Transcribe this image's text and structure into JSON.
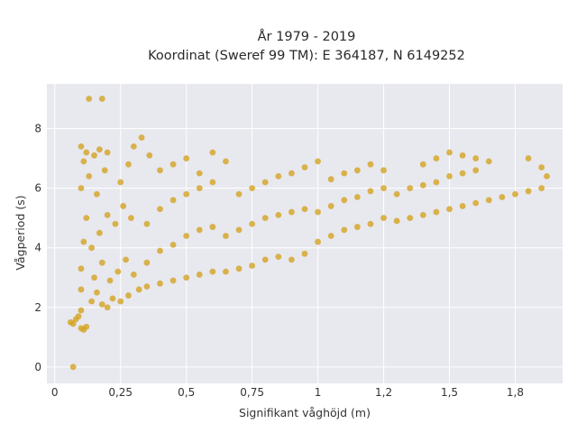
{
  "chart_data": {
    "type": "scatter",
    "title_lines": [
      "År 1979 - 2019",
      "Koordinat (Sweref 99 TM): E 364187, N 6149252"
    ],
    "xlabel": "Signifikant våghöjd (m)",
    "ylabel": "Vågperiod (s)",
    "xlim": [
      -0.03,
      1.93
    ],
    "ylim": [
      -0.55,
      9.5
    ],
    "x_ticks": [
      {
        "value": 0,
        "label": "0"
      },
      {
        "value": 0.25,
        "label": "0,25"
      },
      {
        "value": 0.5,
        "label": "0,5"
      },
      {
        "value": 0.75,
        "label": "0,75"
      },
      {
        "value": 1.0,
        "label": "1"
      },
      {
        "value": 1.25,
        "label": "1,2"
      },
      {
        "value": 1.5,
        "label": "1,5"
      },
      {
        "value": 1.75,
        "label": "1,8"
      }
    ],
    "y_ticks": [
      {
        "value": 0,
        "label": "0"
      },
      {
        "value": 2,
        "label": "2"
      },
      {
        "value": 4,
        "label": "4"
      },
      {
        "value": 6,
        "label": "6"
      },
      {
        "value": 8,
        "label": "8"
      }
    ],
    "grid": true,
    "background": "#e8e8ef",
    "marker_color": "#d4a21c",
    "points": [
      [
        0.07,
        0.0
      ],
      [
        0.13,
        9.0
      ],
      [
        0.18,
        9.0
      ],
      [
        0.06,
        1.5
      ],
      [
        0.07,
        1.45
      ],
      [
        0.08,
        1.6
      ],
      [
        0.09,
        1.7
      ],
      [
        0.1,
        1.3
      ],
      [
        0.11,
        1.25
      ],
      [
        0.12,
        1.35
      ],
      [
        0.1,
        1.9
      ],
      [
        0.1,
        2.6
      ],
      [
        0.1,
        3.3
      ],
      [
        0.11,
        4.2
      ],
      [
        0.12,
        5.0
      ],
      [
        0.1,
        6.0
      ],
      [
        0.11,
        6.9
      ],
      [
        0.1,
        7.4
      ],
      [
        0.12,
        7.2
      ],
      [
        0.15,
        7.1
      ],
      [
        0.17,
        7.3
      ],
      [
        0.2,
        7.2
      ],
      [
        0.13,
        6.4
      ],
      [
        0.16,
        5.8
      ],
      [
        0.19,
        6.6
      ],
      [
        0.14,
        2.2
      ],
      [
        0.16,
        2.5
      ],
      [
        0.18,
        2.1
      ],
      [
        0.2,
        2.0
      ],
      [
        0.22,
        2.3
      ],
      [
        0.25,
        2.2
      ],
      [
        0.28,
        2.4
      ],
      [
        0.15,
        3.0
      ],
      [
        0.18,
        3.5
      ],
      [
        0.21,
        2.9
      ],
      [
        0.24,
        3.2
      ],
      [
        0.27,
        3.6
      ],
      [
        0.3,
        3.1
      ],
      [
        0.14,
        4.0
      ],
      [
        0.17,
        4.5
      ],
      [
        0.2,
        5.1
      ],
      [
        0.23,
        4.8
      ],
      [
        0.26,
        5.4
      ],
      [
        0.29,
        5.0
      ],
      [
        0.25,
        6.2
      ],
      [
        0.28,
        6.8
      ],
      [
        0.3,
        7.4
      ],
      [
        0.33,
        7.7
      ],
      [
        0.36,
        7.1
      ],
      [
        0.4,
        6.6
      ],
      [
        0.32,
        2.6
      ],
      [
        0.35,
        2.7
      ],
      [
        0.4,
        2.8
      ],
      [
        0.45,
        2.9
      ],
      [
        0.5,
        3.0
      ],
      [
        0.55,
        3.1
      ],
      [
        0.6,
        3.2
      ],
      [
        0.35,
        3.5
      ],
      [
        0.4,
        3.9
      ],
      [
        0.45,
        4.1
      ],
      [
        0.5,
        4.4
      ],
      [
        0.55,
        4.6
      ],
      [
        0.6,
        4.7
      ],
      [
        0.35,
        4.8
      ],
      [
        0.4,
        5.3
      ],
      [
        0.45,
        5.6
      ],
      [
        0.5,
        5.8
      ],
      [
        0.55,
        6.0
      ],
      [
        0.6,
        6.2
      ],
      [
        0.45,
        6.8
      ],
      [
        0.5,
        7.0
      ],
      [
        0.55,
        6.5
      ],
      [
        0.6,
        7.2
      ],
      [
        0.65,
        6.9
      ],
      [
        0.65,
        3.2
      ],
      [
        0.7,
        3.3
      ],
      [
        0.75,
        3.4
      ],
      [
        0.8,
        3.6
      ],
      [
        0.85,
        3.7
      ],
      [
        0.9,
        3.6
      ],
      [
        0.95,
        3.8
      ],
      [
        0.65,
        4.4
      ],
      [
        0.7,
        4.6
      ],
      [
        0.75,
        4.8
      ],
      [
        0.8,
        5.0
      ],
      [
        0.85,
        5.1
      ],
      [
        0.9,
        5.2
      ],
      [
        0.95,
        5.3
      ],
      [
        0.7,
        5.8
      ],
      [
        0.75,
        6.0
      ],
      [
        0.8,
        6.2
      ],
      [
        0.85,
        6.4
      ],
      [
        0.9,
        6.5
      ],
      [
        0.95,
        6.7
      ],
      [
        1.0,
        6.9
      ],
      [
        1.0,
        4.2
      ],
      [
        1.05,
        4.4
      ],
      [
        1.1,
        4.6
      ],
      [
        1.15,
        4.7
      ],
      [
        1.2,
        4.8
      ],
      [
        1.25,
        5.0
      ],
      [
        1.0,
        5.2
      ],
      [
        1.05,
        5.4
      ],
      [
        1.1,
        5.6
      ],
      [
        1.15,
        5.7
      ],
      [
        1.2,
        5.9
      ],
      [
        1.25,
        6.0
      ],
      [
        1.05,
        6.3
      ],
      [
        1.1,
        6.5
      ],
      [
        1.15,
        6.6
      ],
      [
        1.2,
        6.8
      ],
      [
        1.25,
        6.6
      ],
      [
        1.3,
        4.9
      ],
      [
        1.35,
        5.0
      ],
      [
        1.4,
        5.1
      ],
      [
        1.45,
        5.2
      ],
      [
        1.5,
        5.3
      ],
      [
        1.55,
        5.4
      ],
      [
        1.6,
        5.5
      ],
      [
        1.3,
        5.8
      ],
      [
        1.35,
        6.0
      ],
      [
        1.4,
        6.1
      ],
      [
        1.45,
        6.2
      ],
      [
        1.5,
        6.4
      ],
      [
        1.55,
        6.5
      ],
      [
        1.6,
        6.6
      ],
      [
        1.4,
        6.8
      ],
      [
        1.45,
        7.0
      ],
      [
        1.5,
        7.2
      ],
      [
        1.55,
        7.1
      ],
      [
        1.6,
        7.0
      ],
      [
        1.65,
        6.9
      ],
      [
        1.65,
        5.6
      ],
      [
        1.7,
        5.7
      ],
      [
        1.75,
        5.8
      ],
      [
        1.8,
        5.9
      ],
      [
        1.85,
        6.0
      ],
      [
        1.87,
        6.4
      ],
      [
        1.85,
        6.7
      ],
      [
        1.8,
        7.0
      ]
    ]
  }
}
